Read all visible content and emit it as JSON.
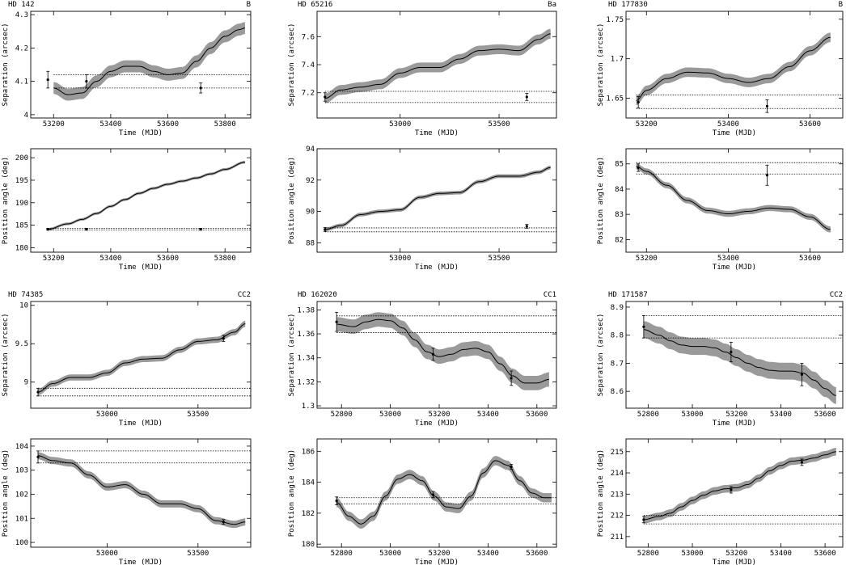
{
  "figure": {
    "panels": [
      {
        "star": "HD 142",
        "component": "B"
      },
      {
        "star": "HD 65216",
        "component": "Ba"
      },
      {
        "star": "HD 177830",
        "component": "B"
      },
      {
        "star": "HD 74385",
        "component": "CC2"
      },
      {
        "star": "HD 162020",
        "component": "CC1"
      },
      {
        "star": "HD 171587",
        "component": "CC2"
      }
    ]
  },
  "chart_data": [
    {
      "type": "line",
      "star": "HD 142",
      "component": "B",
      "xlabel": "Time (MJD)",
      "ylabel": "Separation (arcsec)",
      "xlim": [
        53120,
        53890
      ],
      "ylim": [
        3.99,
        4.31
      ],
      "xticks": [
        53200,
        53400,
        53600,
        53800
      ],
      "yticks": [
        4,
        4.1,
        4.2,
        4.3
      ],
      "model": {
        "x": [
          53200,
          53250,
          53300,
          53350,
          53400,
          53450,
          53500,
          53550,
          53600,
          53650,
          53700,
          53750,
          53800,
          53850,
          53870
        ],
        "y": [
          4.08,
          4.06,
          4.065,
          4.1,
          4.13,
          4.145,
          4.145,
          4.13,
          4.12,
          4.125,
          4.16,
          4.2,
          4.235,
          4.255,
          4.26
        ],
        "band": 0.018
      },
      "points": [
        {
          "x": 53180,
          "y": 4.105,
          "err": 0.025
        },
        {
          "x": 53315,
          "y": 4.1,
          "err": 0.02
        },
        {
          "x": 53715,
          "y": 4.08,
          "err": 0.015
        }
      ],
      "hlines": [
        4.12,
        4.08
      ]
    },
    {
      "type": "line",
      "star": "HD 65216",
      "component": "Ba",
      "xlabel": "Time (MJD)",
      "ylabel": "Separation (arcsec)",
      "xlim": [
        52580,
        53790
      ],
      "ylim": [
        7.02,
        7.78
      ],
      "xticks": [
        53000,
        53500
      ],
      "yticks": [
        7.2,
        7.4,
        7.6
      ],
      "model": {
        "x": [
          52620,
          52700,
          52800,
          52900,
          53000,
          53100,
          53200,
          53300,
          53400,
          53500,
          53600,
          53700,
          53760
        ],
        "y": [
          7.16,
          7.22,
          7.24,
          7.26,
          7.34,
          7.38,
          7.38,
          7.44,
          7.5,
          7.51,
          7.5,
          7.58,
          7.62
        ],
        "band": 0.035
      },
      "points": [
        {
          "x": 52620,
          "y": 7.17,
          "err": 0.03
        },
        {
          "x": 53640,
          "y": 7.17,
          "err": 0.025
        }
      ],
      "hlines": [
        7.21,
        7.13
      ]
    },
    {
      "type": "line",
      "star": "HD 177830",
      "component": "B",
      "xlabel": "Time (MJD)",
      "ylabel": "Separation (arcsec)",
      "xlim": [
        53150,
        53680
      ],
      "ylim": [
        1.625,
        1.76
      ],
      "xticks": [
        53200,
        53400,
        53600
      ],
      "yticks": [
        1.65,
        1.7,
        1.75
      ],
      "model": {
        "x": [
          53175,
          53200,
          53250,
          53300,
          53350,
          53400,
          53450,
          53500,
          53550,
          53600,
          53650
        ],
        "y": [
          1.647,
          1.66,
          1.675,
          1.683,
          1.682,
          1.675,
          1.67,
          1.675,
          1.69,
          1.71,
          1.727
        ],
        "band": 0.006
      },
      "points": [
        {
          "x": 53180,
          "y": 1.645,
          "err": 0.007
        },
        {
          "x": 53495,
          "y": 1.64,
          "err": 0.008
        }
      ],
      "hlines": [
        1.654,
        1.637
      ]
    },
    {
      "type": "line",
      "star": "HD 142",
      "component": "B",
      "xlabel": "Time (MJD)",
      "ylabel": "Position angle (deg)",
      "xlim": [
        53120,
        53890
      ],
      "ylim": [
        179,
        202
      ],
      "xticks": [
        53200,
        53400,
        53600,
        53800
      ],
      "yticks": [
        180,
        185,
        190,
        195,
        200
      ],
      "model": {
        "x": [
          53180,
          53250,
          53300,
          53350,
          53400,
          53450,
          53500,
          53550,
          53600,
          53650,
          53700,
          53750,
          53800,
          53870
        ],
        "y": [
          184.1,
          185.3,
          186.3,
          187.6,
          189.2,
          190.7,
          192.1,
          193.2,
          194.1,
          194.8,
          195.5,
          196.4,
          197.4,
          199.0
        ],
        "band": 0.3
      },
      "points": [
        {
          "x": 53180,
          "y": 184.1,
          "err": 0.2
        },
        {
          "x": 53315,
          "y": 184.1,
          "err": 0.2
        },
        {
          "x": 53715,
          "y": 184.1,
          "err": 0.2
        }
      ],
      "hlines": [
        184.3,
        183.9
      ]
    },
    {
      "type": "line",
      "star": "HD 65216",
      "component": "Ba",
      "xlabel": "Time (MJD)",
      "ylabel": "Position angle (deg)",
      "xlim": [
        52580,
        53790
      ],
      "ylim": [
        87.4,
        94.0
      ],
      "xticks": [
        53000,
        53500
      ],
      "yticks": [
        88,
        90,
        92,
        94
      ],
      "model": {
        "x": [
          52620,
          52700,
          52800,
          52900,
          53000,
          53100,
          53200,
          53300,
          53400,
          53500,
          53600,
          53700,
          53760
        ],
        "y": [
          88.85,
          89.1,
          89.8,
          90.0,
          90.1,
          90.9,
          91.15,
          91.2,
          91.9,
          92.25,
          92.25,
          92.5,
          92.8
        ],
        "band": 0.12
      },
      "points": [
        {
          "x": 52620,
          "y": 88.85,
          "err": 0.12
        },
        {
          "x": 53640,
          "y": 89.05,
          "err": 0.12
        }
      ],
      "hlines": [
        88.95,
        88.7
      ]
    },
    {
      "type": "line",
      "star": "HD 177830",
      "component": "B",
      "xlabel": "Time (MJD)",
      "ylabel": "Position angle (deg)",
      "xlim": [
        53150,
        53680
      ],
      "ylim": [
        81.5,
        85.6
      ],
      "xticks": [
        53200,
        53400,
        53600
      ],
      "yticks": [
        82,
        83,
        84,
        85
      ],
      "model": {
        "x": [
          53175,
          53200,
          53250,
          53300,
          53350,
          53400,
          53450,
          53500,
          53550,
          53600,
          53650
        ],
        "y": [
          84.9,
          84.7,
          84.15,
          83.55,
          83.15,
          83.02,
          83.12,
          83.25,
          83.2,
          82.9,
          82.4
        ],
        "band": 0.12
      },
      "points": [
        {
          "x": 53180,
          "y": 84.85,
          "err": 0.15
        },
        {
          "x": 53495,
          "y": 84.55,
          "err": 0.4
        }
      ],
      "hlines": [
        85.05,
        84.6
      ]
    },
    {
      "type": "line",
      "star": "HD 74385",
      "component": "CC2",
      "xlabel": "Time (MJD)",
      "ylabel": "Separation (arcsec)",
      "xlim": [
        52580,
        53790
      ],
      "ylim": [
        8.66,
        10.05
      ],
      "xticks": [
        53000,
        53500
      ],
      "yticks": [
        9,
        9.5,
        10
      ],
      "model": {
        "x": [
          52620,
          52700,
          52800,
          52900,
          53000,
          53100,
          53200,
          53300,
          53400,
          53500,
          53600,
          53700,
          53760
        ],
        "y": [
          8.87,
          8.98,
          9.06,
          9.06,
          9.12,
          9.25,
          9.3,
          9.31,
          9.42,
          9.53,
          9.55,
          9.65,
          9.76
        ],
        "band": 0.04
      },
      "points": [
        {
          "x": 52620,
          "y": 8.87,
          "err": 0.05
        },
        {
          "x": 53640,
          "y": 9.57,
          "err": 0.04
        }
      ],
      "hlines": [
        8.92,
        8.82
      ]
    },
    {
      "type": "line",
      "star": "HD 162020",
      "component": "CC1",
      "xlabel": "Time (MJD)",
      "ylabel": "Separation (arcsec)",
      "xlim": [
        52700,
        53680
      ],
      "ylim": [
        1.298,
        1.387
      ],
      "xticks": [
        52800,
        53000,
        53200,
        53400,
        53600
      ],
      "yticks": [
        1.3,
        1.32,
        1.34,
        1.36,
        1.38
      ],
      "model": {
        "x": [
          52780,
          52850,
          52900,
          52950,
          53000,
          53050,
          53100,
          53150,
          53200,
          53250,
          53300,
          53350,
          53400,
          53450,
          53500,
          53550,
          53600,
          53650
        ],
        "y": [
          1.368,
          1.366,
          1.37,
          1.372,
          1.371,
          1.365,
          1.355,
          1.345,
          1.341,
          1.343,
          1.347,
          1.348,
          1.345,
          1.335,
          1.325,
          1.319,
          1.319,
          1.322
        ],
        "band": 0.006
      },
      "points": [
        {
          "x": 52780,
          "y": 1.37,
          "err": 0.008
        },
        {
          "x": 53175,
          "y": 1.343,
          "err": 0.005
        },
        {
          "x": 53495,
          "y": 1.323,
          "err": 0.006
        }
      ],
      "hlines": [
        1.375,
        1.361
      ]
    },
    {
      "type": "line",
      "star": "HD 171587",
      "component": "CC2",
      "xlabel": "Time (MJD)",
      "ylabel": "Separation (arcsec)",
      "xlim": [
        52700,
        53680
      ],
      "ylim": [
        8.54,
        8.92
      ],
      "xticks": [
        52800,
        53000,
        53200,
        53400,
        53600
      ],
      "yticks": [
        8.6,
        8.7,
        8.8,
        8.9
      ],
      "model": {
        "x": [
          52780,
          52850,
          52900,
          52950,
          53000,
          53050,
          53100,
          53150,
          53200,
          53250,
          53300,
          53350,
          53400,
          53450,
          53500,
          53550,
          53600,
          53650
        ],
        "y": [
          8.82,
          8.8,
          8.78,
          8.765,
          8.76,
          8.76,
          8.755,
          8.74,
          8.72,
          8.7,
          8.685,
          8.675,
          8.672,
          8.672,
          8.665,
          8.64,
          8.61,
          8.585
        ],
        "band": 0.03
      },
      "points": [
        {
          "x": 52780,
          "y": 8.83,
          "err": 0.04
        },
        {
          "x": 53175,
          "y": 8.74,
          "err": 0.035
        },
        {
          "x": 53495,
          "y": 8.66,
          "err": 0.04
        }
      ],
      "hlines": [
        8.87,
        8.79
      ]
    },
    {
      "type": "line",
      "star": "HD 74385",
      "component": "CC2",
      "xlabel": "Time (MJD)",
      "ylabel": "Position angle (deg)",
      "xlim": [
        52580,
        53790
      ],
      "ylim": [
        99.8,
        104.3
      ],
      "xticks": [
        53000,
        53500
      ],
      "yticks": [
        100,
        101,
        102,
        103,
        104
      ],
      "model": {
        "x": [
          52620,
          52700,
          52800,
          52900,
          53000,
          53100,
          53200,
          53300,
          53400,
          53500,
          53600,
          53700,
          53760
        ],
        "y": [
          103.6,
          103.4,
          103.3,
          102.8,
          102.3,
          102.4,
          102.0,
          101.6,
          101.6,
          101.4,
          100.9,
          100.75,
          100.85
        ],
        "band": 0.15
      },
      "points": [
        {
          "x": 52620,
          "y": 103.55,
          "err": 0.25
        },
        {
          "x": 53640,
          "y": 100.85,
          "err": 0.1
        }
      ],
      "hlines": [
        103.8,
        103.3
      ]
    },
    {
      "type": "line",
      "star": "HD 162020",
      "component": "CC1",
      "xlabel": "Time (MJD)",
      "ylabel": "Position angle (deg)",
      "xlim": [
        52700,
        53680
      ],
      "ylim": [
        179.8,
        186.8
      ],
      "xticks": [
        52800,
        53000,
        53200,
        53400,
        53600
      ],
      "yticks": [
        180,
        182,
        184,
        186
      ],
      "model": {
        "x": [
          52780,
          52830,
          52880,
          52930,
          52980,
          53030,
          53080,
          53130,
          53180,
          53230,
          53280,
          53330,
          53380,
          53430,
          53480,
          53530,
          53580,
          53630,
          53660
        ],
        "y": [
          182.7,
          181.8,
          181.3,
          181.8,
          183.1,
          184.2,
          184.5,
          184.1,
          183.1,
          182.4,
          182.3,
          183.1,
          184.6,
          185.4,
          185.1,
          184.1,
          183.3,
          183.0,
          183.0
        ],
        "band": 0.3
      },
      "points": [
        {
          "x": 52780,
          "y": 182.8,
          "err": 0.25
        },
        {
          "x": 53175,
          "y": 183.2,
          "err": 0.2
        },
        {
          "x": 53495,
          "y": 185.0,
          "err": 0.15
        }
      ],
      "hlines": [
        183.0,
        182.6
      ]
    },
    {
      "type": "line",
      "star": "HD 171587",
      "component": "CC2",
      "xlabel": "Time (MJD)",
      "ylabel": "Position angle (deg)",
      "xlim": [
        52700,
        53680
      ],
      "ylim": [
        210.5,
        215.6
      ],
      "xticks": [
        52800,
        53000,
        53200,
        53400,
        53600
      ],
      "yticks": [
        211,
        212,
        213,
        214,
        215
      ],
      "model": {
        "x": [
          52780,
          52850,
          52900,
          52950,
          53000,
          53050,
          53100,
          53150,
          53200,
          53250,
          53300,
          53350,
          53400,
          53450,
          53500,
          53550,
          53600,
          53650
        ],
        "y": [
          211.8,
          211.95,
          212.1,
          212.4,
          212.7,
          212.95,
          213.15,
          213.25,
          213.3,
          213.45,
          213.75,
          214.1,
          214.35,
          214.55,
          214.6,
          214.7,
          214.85,
          215.0
        ],
        "band": 0.18
      },
      "points": [
        {
          "x": 52780,
          "y": 211.8,
          "err": 0.15
        },
        {
          "x": 53175,
          "y": 213.2,
          "err": 0.15
        },
        {
          "x": 53495,
          "y": 214.5,
          "err": 0.15
        }
      ],
      "hlines": [
        212.0,
        211.6
      ]
    }
  ]
}
